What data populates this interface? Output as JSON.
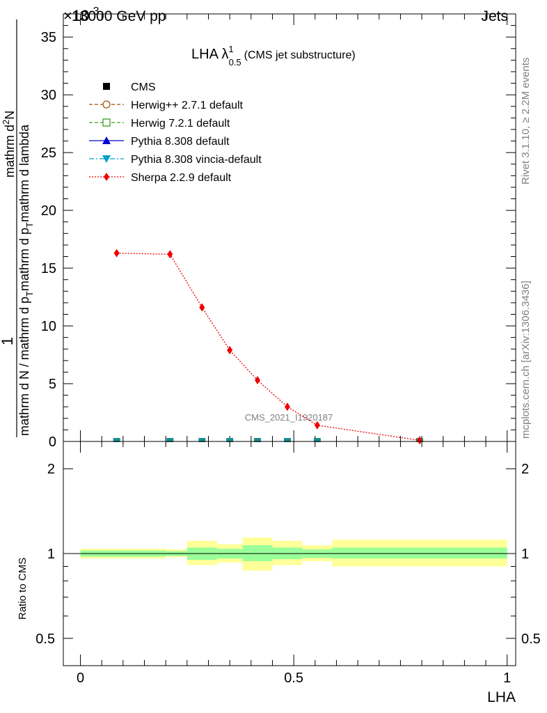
{
  "header": {
    "energy_label": "13000 GeV pp",
    "process_label": "Jets",
    "multiplier_label": "×10",
    "multiplier_exponent": "-3"
  },
  "side_labels": {
    "rivet": "Rivet 3.1.10, ≥ 2.2M events",
    "mcplots": "mcplots.cern.ch [arXiv:1306.3436]"
  },
  "plot_title": {
    "main": "LHA λ",
    "sup": "1",
    "sub": "0.5",
    "suffix": "(CMS jet substructure)"
  },
  "watermark": "CMS_2021_I1920187",
  "colors": {
    "band_outer": "#ffff99",
    "band_inner": "#99ff99",
    "cms_marker": "#000000",
    "herwigpp": "#a0520b",
    "herwig7": "#3c9c1e",
    "pythia": "#0000cc",
    "vincia": "#00a0c8",
    "sherpa": "#ee0000",
    "overlap_marker": "#1a8c8c"
  },
  "chart_data": [
    {
      "type": "line",
      "panel": "main",
      "xlabel": "",
      "ylabel": {
        "numerator": "1",
        "line1": "mathrm d N / mathrm d p",
        "line1_sub": "T",
        "line1_rest": "mathrm d p",
        "line1_sub2": "T",
        "line1_rest2": "mathrm d lambda",
        "line2_top": "mathrm d",
        "line2_sup": "2",
        "line2_rest": "N"
      },
      "xlim": [
        -0.04,
        1.02
      ],
      "ylim": [
        0,
        37
      ],
      "y_scale_factor": "1e-3",
      "yticks": [
        0,
        5,
        10,
        15,
        20,
        25,
        30,
        35
      ],
      "legend_position": "top-left",
      "series": [
        {
          "name": "CMS",
          "marker": "square",
          "style": "none",
          "x": [],
          "y": []
        },
        {
          "name": "Herwig++ 2.7.1 default",
          "marker": "open-circle",
          "style": "dashed",
          "x": [],
          "y": []
        },
        {
          "name": "Herwig 7.2.1 default",
          "marker": "open-square",
          "style": "dashed",
          "x": [],
          "y": []
        },
        {
          "name": "Pythia 8.308 default",
          "marker": "triangle-up",
          "style": "solid",
          "x": [],
          "y": []
        },
        {
          "name": "Pythia 8.308 vincia-default",
          "marker": "triangle-down",
          "style": "dashdot",
          "x": [],
          "y": []
        },
        {
          "name": "Sherpa 2.2.9 default",
          "marker": "diamond",
          "style": "dotted",
          "x": [
            0.085,
            0.21,
            0.285,
            0.35,
            0.415,
            0.485,
            0.555,
            0.795
          ],
          "y": [
            16.3,
            16.2,
            11.6,
            7.9,
            5.3,
            3.0,
            1.4,
            0.1
          ]
        }
      ],
      "near_zero_markers_x": [
        0.085,
        0.21,
        0.285,
        0.35,
        0.415,
        0.485,
        0.555,
        0.795
      ]
    },
    {
      "type": "line",
      "panel": "ratio",
      "xlabel": "LHA",
      "ylabel": "Ratio to CMS",
      "xlim": [
        -0.04,
        1.02
      ],
      "ylim": [
        0.4,
        2.5
      ],
      "y_scale": "log",
      "xticks": [
        0,
        0.5,
        1
      ],
      "xtick_labels": [
        "0",
        "0.5",
        "1"
      ],
      "yticks": [
        0.5,
        1,
        2
      ],
      "ytick_labels": [
        "0.5",
        "1",
        "2"
      ],
      "reference_line": 1,
      "bins": [
        {
          "lo": 0.0,
          "hi": 0.2,
          "inner": [
            0.975,
            1.025
          ],
          "outer": [
            0.96,
            1.04
          ]
        },
        {
          "lo": 0.2,
          "hi": 0.25,
          "inner": [
            0.98,
            1.02
          ],
          "outer": [
            0.97,
            1.035
          ]
        },
        {
          "lo": 0.25,
          "hi": 0.32,
          "inner": [
            0.95,
            1.05
          ],
          "outer": [
            0.91,
            1.11
          ]
        },
        {
          "lo": 0.32,
          "hi": 0.38,
          "inner": [
            0.96,
            1.04
          ],
          "outer": [
            0.93,
            1.08
          ]
        },
        {
          "lo": 0.38,
          "hi": 0.45,
          "inner": [
            0.94,
            1.07
          ],
          "outer": [
            0.87,
            1.14
          ]
        },
        {
          "lo": 0.45,
          "hi": 0.52,
          "inner": [
            0.955,
            1.05
          ],
          "outer": [
            0.91,
            1.11
          ]
        },
        {
          "lo": 0.52,
          "hi": 0.59,
          "inner": [
            0.965,
            1.035
          ],
          "outer": [
            0.94,
            1.07
          ]
        },
        {
          "lo": 0.59,
          "hi": 1.0,
          "inner": [
            0.96,
            1.05
          ],
          "outer": [
            0.9,
            1.12
          ]
        }
      ]
    }
  ]
}
